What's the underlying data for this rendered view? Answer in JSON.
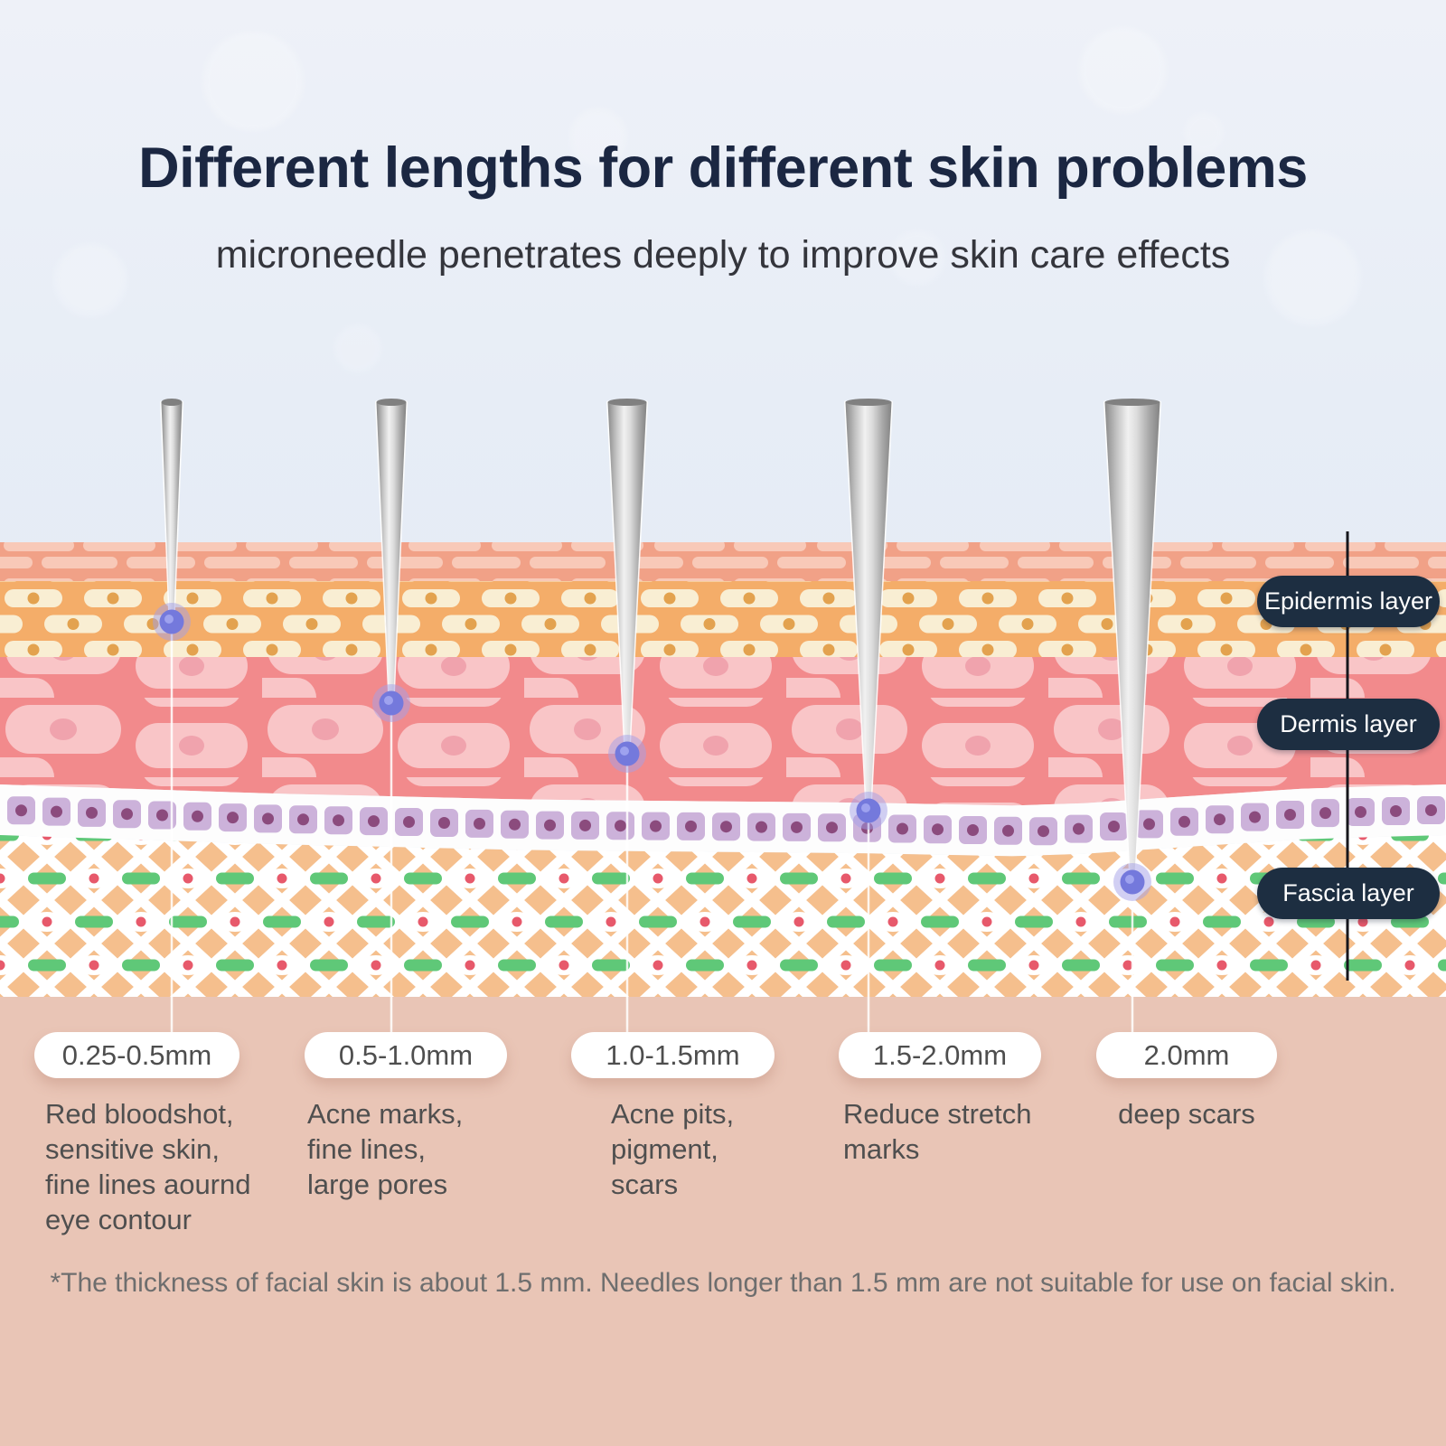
{
  "title": "Different lengths for different skin problems",
  "subtitle": "microneedle penetrates deeply to improve skin care effects",
  "layer_labels": [
    {
      "label": "Epidermis layer"
    },
    {
      "label": "Dermis layer"
    },
    {
      "label": "Fascia layer"
    }
  ],
  "columns": [
    {
      "depth": "0.25-0.5mm",
      "treats": "Red bloodshot,\nsensitive skin,\nfine lines aournd\neye contour"
    },
    {
      "depth": "0.5-1.0mm",
      "treats": "Acne marks,\nfine lines,\nlarge pores"
    },
    {
      "depth": "1.0-1.5mm",
      "treats": "Acne pits,\npigment,\nscars"
    },
    {
      "depth": "1.5-2.0mm",
      "treats": "Reduce stretch\nmarks"
    },
    {
      "depth": "2.0mm",
      "treats": "deep scars"
    }
  ],
  "footnote": "*The thickness of facial skin is about 1.5 mm. Needles longer than 1.5 mm are not suitable for use on facial skin.",
  "colors": {
    "sky": "#e7edf6",
    "ground": "#e9c5b6",
    "label_pill_bg": "#1d2e41",
    "corneum": "#f1a187",
    "epidermis": "#f4ad69",
    "dermis": "#f28a8c",
    "basement_cell": "#ccb2da",
    "fascia": "#f5bf8d",
    "green_fiber": "#5fc878",
    "red_dot": "#e7596b",
    "needle_tip_glow": "#7479dc"
  }
}
